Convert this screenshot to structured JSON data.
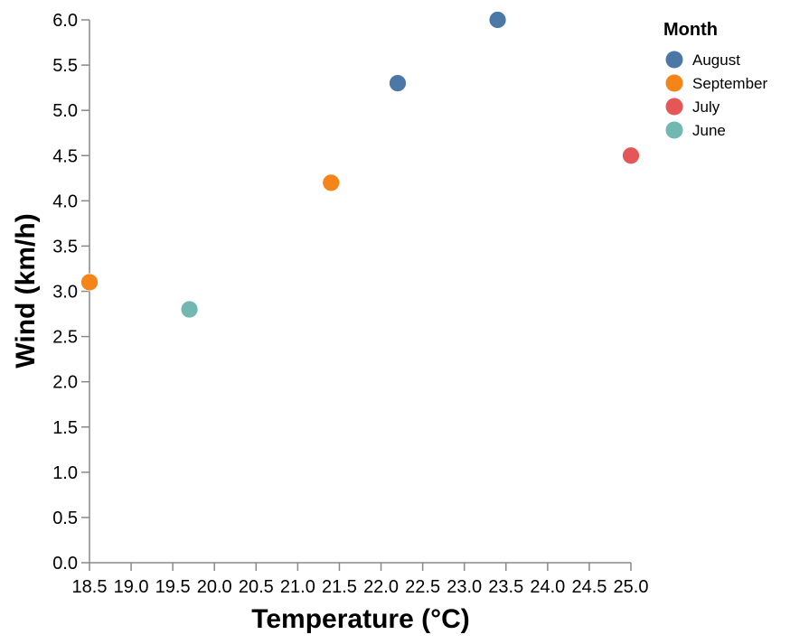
{
  "chart_data": {
    "type": "scatter",
    "title": "",
    "xlabel": "Temperature (°C)",
    "ylabel": "Wind (km/h)",
    "xlim": [
      18.5,
      25.0
    ],
    "ylim": [
      0.0,
      6.0
    ],
    "x_ticks": [
      "18.5",
      "19.0",
      "19.5",
      "20.0",
      "20.5",
      "21.0",
      "21.5",
      "22.0",
      "22.5",
      "23.0",
      "23.5",
      "24.0",
      "24.5",
      "25.0"
    ],
    "y_ticks": [
      "0.0",
      "0.5",
      "1.0",
      "1.5",
      "2.0",
      "2.5",
      "3.0",
      "3.5",
      "4.0",
      "4.5",
      "5.0",
      "5.5",
      "6.0"
    ],
    "grid": false,
    "legend": {
      "title": "Month",
      "position": "top-right"
    },
    "series": [
      {
        "name": "August",
        "color": "#4c78a8",
        "points": [
          {
            "x": 22.2,
            "y": 5.3
          },
          {
            "x": 23.4,
            "y": 6.0
          }
        ]
      },
      {
        "name": "September",
        "color": "#f58518",
        "points": [
          {
            "x": 18.5,
            "y": 3.1
          },
          {
            "x": 21.4,
            "y": 4.2
          }
        ]
      },
      {
        "name": "July",
        "color": "#e45756",
        "points": [
          {
            "x": 25.0,
            "y": 4.5
          }
        ]
      },
      {
        "name": "June",
        "color": "#72b7b2",
        "points": [
          {
            "x": 19.7,
            "y": 2.8
          }
        ]
      }
    ]
  }
}
